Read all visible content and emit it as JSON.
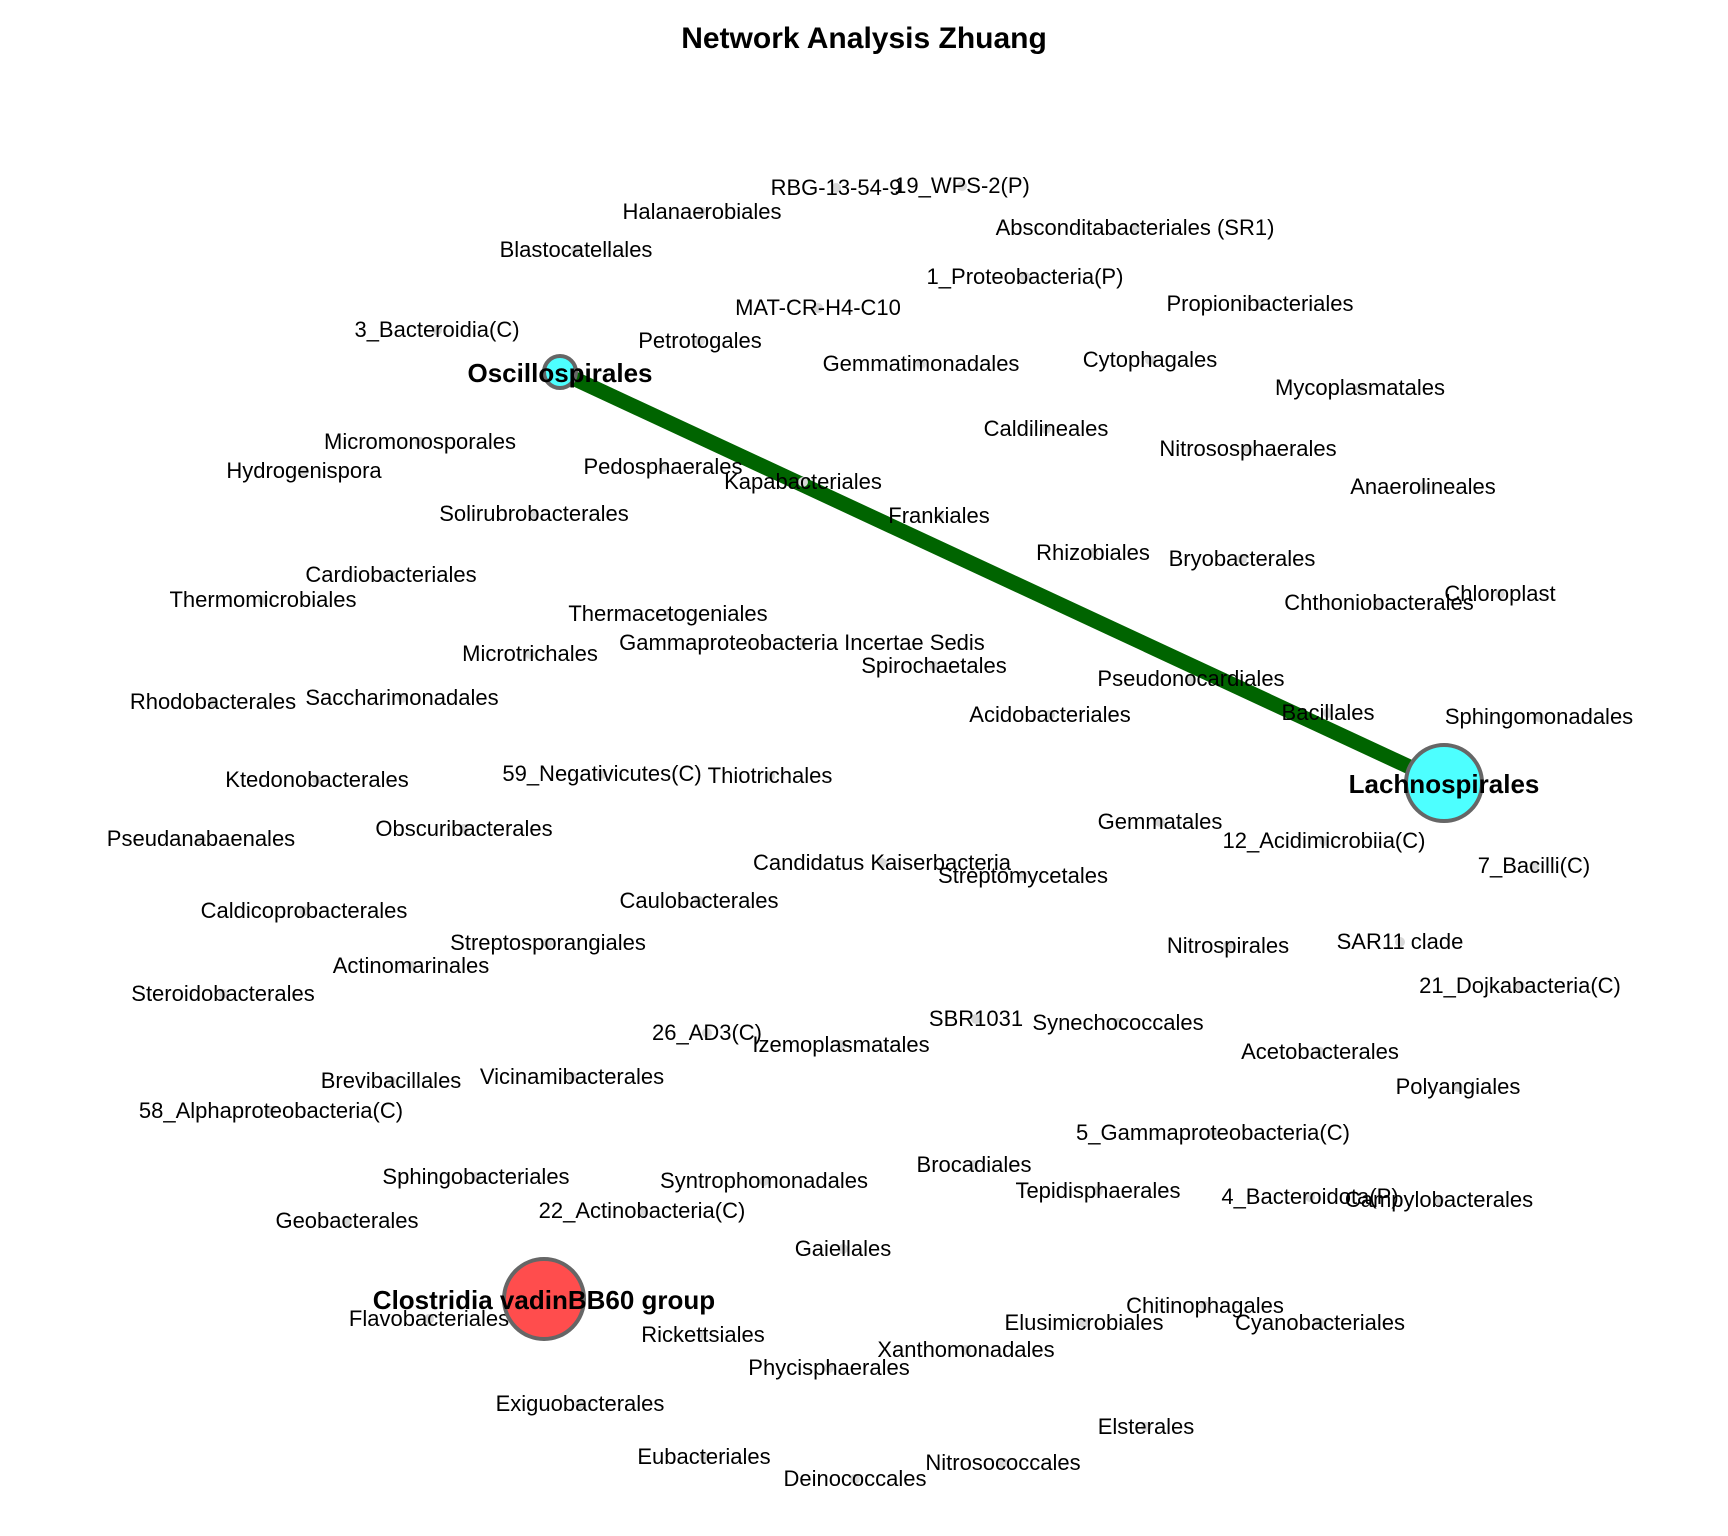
{
  "title": "Network Analysis Zhuang",
  "colors": {
    "edge": "#006400",
    "node_cyan": "#4dffff",
    "node_red": "#ff4d4d",
    "node_stroke": "#666666",
    "minor_node": "#d9d9d9"
  },
  "major_nodes": [
    {
      "id": "oscillospirales",
      "label": "Oscillospirales",
      "color": "#4dffff"
    },
    {
      "id": "lachnospirales",
      "label": "Lachnospirales",
      "color": "#4dffff"
    },
    {
      "id": "clostridia",
      "label": "Clostridia vadinBB60 group",
      "color": "#ff4d4d"
    }
  ],
  "edges": [
    {
      "from": "Oscillospirales",
      "to": "Lachnospirales"
    }
  ],
  "minor_nodes": [
    "RBG-13-54-9",
    "19_WPS-2(P)",
    "Halanaerobiales",
    "Absconditabacteriales (SR1)",
    "Blastocatellales",
    "1_Proteobacteria(P)",
    "MAT-CR-H4-C10",
    "Propionibacteriales",
    "3_Bacteroidia(C)",
    "Petrotogales",
    "Gemmatimonadales",
    "Cytophagales",
    "Mycoplasmatales",
    "Caldilineales",
    "Micromonosporales",
    "Nitrososphaerales",
    "Hydrogenispora",
    "Pedosphaerales",
    "Kapabacteriales",
    "Anaerolineales",
    "Solirubrobacterales",
    "Frankiales",
    "Rhizobiales",
    "Bryobacterales",
    "Cardiobacteriales",
    "Thermomicrobiales",
    "Chloroplast",
    "Chthoniobacterales",
    "Thermacetogeniales",
    "Gammaproteobacteria Incertae Sedis",
    "Microtrichales",
    "Spirochaetales",
    "Pseudonocardiales",
    "Rhodobacterales",
    "Saccharimonadales",
    "Acidobacteriales",
    "Bacillales",
    "Sphingomonadales",
    "Ktedonobacterales",
    "59_Negativicutes(C)",
    "Thiotrichales",
    "Gemmatales",
    "Pseudanabaenales",
    "Obscuribacterales",
    "12_Acidimicrobiia(C)",
    "Candidatus Kaiserbacteria",
    "7_Bacilli(C)",
    "Streptomycetales",
    "Caldicoprobacterales",
    "Caulobacterales",
    "Streptosporangiales",
    "Nitrospirales",
    "SAR11 clade",
    "Actinomarinales",
    "Steroidobacterales",
    "21_Dojkabacteria(C)",
    "SBR1031",
    "26_AD3(C)",
    "Synechococcales",
    "Izemoplasmatales",
    "Acetobacterales",
    "Brevibacillales",
    "Vicinamibacterales",
    "Polyangiales",
    "58_Alphaproteobacteria(C)",
    "5_Gammaproteobacteria(C)",
    "Sphingobacteriales",
    "Brocadiales",
    "Syntrophomonadales",
    "Tepidisphaerales",
    "4_Bacteroidota(P)",
    "Campylobacterales",
    "Geobacterales",
    "22_Actinobacteria(C)",
    "Gaiellales",
    "Chitinophagales",
    "Elusimicrobiales",
    "Cyanobacteriales",
    "Flavobacteriales",
    "Rickettsiales",
    "Xanthomonadales",
    "Phycisphaerales",
    "Exiguobacterales",
    "Elsterales",
    "Eubacteriales",
    "Nitrosococcales",
    "Deinococcales"
  ]
}
